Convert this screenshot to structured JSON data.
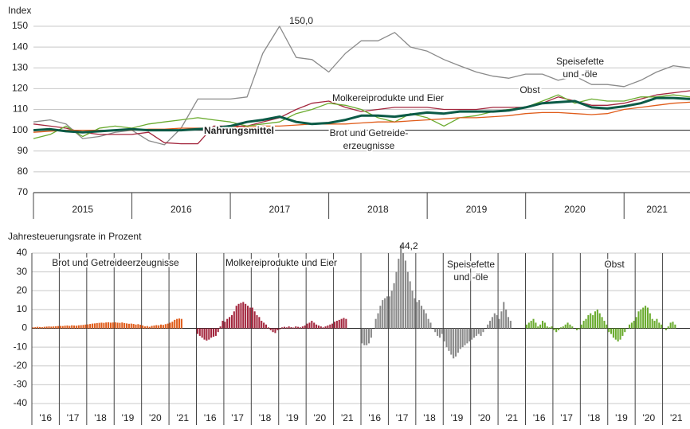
{
  "chart_data": [
    {
      "type": "line",
      "axis_title": "Index",
      "x": [
        2015,
        2015.17,
        2015.33,
        2015.5,
        2015.67,
        2015.83,
        2016,
        2016.17,
        2016.33,
        2016.5,
        2016.67,
        2016.83,
        2017,
        2017.17,
        2017.33,
        2017.5,
        2017.67,
        2017.83,
        2018,
        2018.17,
        2018.33,
        2018.5,
        2018.67,
        2018.83,
        2019,
        2019.17,
        2019.33,
        2019.5,
        2019.67,
        2019.83,
        2020,
        2020.17,
        2020.33,
        2020.5,
        2020.67,
        2020.83,
        2021,
        2021.17,
        2021.33,
        2021.5,
        2021.67
      ],
      "xlim": [
        2015,
        2021.67
      ],
      "xticks": [
        2015,
        2016,
        2017,
        2018,
        2019,
        2020,
        2021
      ],
      "year_labels": [
        "2015",
        "2016",
        "2017",
        "2018",
        "2019",
        "2020",
        "2021"
      ],
      "ylim": [
        70,
        150
      ],
      "yticks": [
        70,
        80,
        90,
        100,
        110,
        120,
        130,
        140,
        150
      ],
      "grid": true,
      "reference_line": 100,
      "annotations": [
        {
          "text": "150,0"
        }
      ],
      "series": [
        {
          "name": "Nahrungsmittel",
          "color": "#0b5a46",
          "width": 3,
          "values": [
            100,
            100.5,
            99.5,
            99,
            99.5,
            100,
            100.5,
            100,
            100,
            100,
            100.5,
            101,
            102,
            104,
            105,
            106.5,
            104,
            103,
            103.5,
            105,
            107,
            107,
            106.5,
            107.5,
            108.5,
            108,
            109,
            109,
            109,
            109.5,
            111,
            113,
            113.5,
            114,
            111,
            110.5,
            111.5,
            113,
            115.5,
            115.5,
            115
          ]
        },
        {
          "name": [
            "Speisefette",
            "und -öle"
          ],
          "color": "#8a8a8a",
          "width": 1.3,
          "values": [
            104,
            105,
            103,
            96,
            97,
            99,
            100,
            95,
            93,
            101,
            115,
            115,
            115,
            116,
            137,
            150,
            135,
            134,
            128,
            137,
            143,
            143,
            147,
            140,
            138,
            134,
            131,
            128,
            126,
            125,
            127,
            127,
            124,
            126,
            122,
            122,
            121,
            124,
            128,
            131,
            130
          ]
        },
        {
          "name": "Molkereiprodukte und Eier",
          "color": "#a3263d",
          "width": 1.3,
          "values": [
            103,
            102,
            101,
            99,
            98,
            98,
            98,
            99,
            94,
            93.5,
            93.5,
            102,
            102,
            102,
            104,
            106,
            110,
            113,
            114,
            111,
            109,
            110,
            111,
            111,
            111,
            110,
            110,
            110,
            111,
            111,
            111,
            113,
            116,
            114,
            112,
            112,
            113,
            115,
            117,
            118,
            119
          ]
        },
        {
          "name": "Obst",
          "color": "#6aab2e",
          "width": 1.3,
          "values": [
            96,
            98,
            102,
            97,
            101,
            102,
            101,
            103,
            104,
            105,
            106,
            105,
            104,
            102,
            103,
            104,
            108,
            110,
            113,
            112,
            110,
            106,
            104,
            108,
            106,
            102,
            106,
            107,
            109,
            110,
            111,
            114,
            117,
            113,
            115,
            114,
            114,
            116,
            116,
            117,
            116
          ]
        },
        {
          "name": [
            "Brot und Getreide-",
            "erzeugnisse"
          ],
          "color": "#e05c1a",
          "width": 1.3,
          "values": [
            99,
            99.5,
            100,
            100,
            100,
            100,
            100,
            100.5,
            100.5,
            101,
            101,
            101,
            101.5,
            101.5,
            102,
            102,
            102.5,
            103,
            103,
            103,
            103.5,
            104,
            104,
            104.5,
            105,
            105.5,
            106,
            106,
            106.5,
            107,
            108,
            108.5,
            108.5,
            108,
            107.5,
            108,
            110,
            111,
            112,
            113,
            113.5
          ]
        }
      ]
    },
    {
      "type": "bar",
      "axis_title": "Jahresteuerungsrate in Prozent",
      "year_labels": [
        "'16",
        "'17",
        "'18",
        "'19",
        "'20",
        "'21"
      ],
      "ylim": [
        -40,
        40
      ],
      "yticks": [
        -40,
        -30,
        -20,
        -10,
        0,
        10,
        20,
        30,
        40
      ],
      "grid": true,
      "reference_line": 0,
      "annotations": [
        {
          "text": "44,2"
        }
      ],
      "series": [
        {
          "name": "Brot und Getreideerzeugnisse",
          "color": "#e05c1a",
          "values": [
            0.5,
            0.6,
            0.8,
            0.7,
            0.6,
            0.8,
            0.9,
            1.0,
            0.9,
            1.0,
            1.1,
            1.2,
            1.3,
            1.2,
            1.4,
            1.5,
            1.3,
            1.6,
            1.5,
            1.4,
            1.6,
            1.7,
            1.8,
            2.0,
            2.1,
            2.3,
            2.5,
            2.6,
            2.8,
            2.9,
            3.0,
            2.9,
            3.1,
            3.2,
            3.0,
            3.1,
            3.2,
            3.0,
            2.9,
            3.1,
            2.8,
            2.6,
            2.4,
            2.5,
            2.3,
            2.0,
            2.2,
            1.9,
            1.5,
            1.0,
            1.2,
            0.8,
            1.3,
            1.5,
            1.7,
            1.6,
            2.0,
            1.8,
            2.2,
            2.5,
            3.0,
            3.5,
            4.5,
            5.0,
            5.2,
            5.0
          ]
        },
        {
          "name": "Molkereiprodukte und Eier",
          "color": "#a3263d",
          "values": [
            -3,
            -4,
            -5,
            -6,
            -6.5,
            -6,
            -5,
            -4.5,
            -4,
            -2,
            1,
            4,
            3.5,
            5,
            6,
            7,
            9,
            12,
            13,
            13.5,
            14,
            13,
            12,
            11,
            11,
            9,
            7,
            6,
            4,
            3,
            2,
            0.5,
            -1,
            -2,
            -2.5,
            -1,
            -0.5,
            0.5,
            0.8,
            0.5,
            1,
            0.6,
            0.4,
            1,
            0.8,
            0.5,
            1,
            1.5,
            2.5,
            3,
            4,
            3,
            2,
            1.5,
            1,
            0.5,
            1,
            1.5,
            2,
            2.5,
            3.5,
            4,
            4.5,
            5,
            5.5,
            5
          ]
        },
        {
          "name": [
            "Speisefette",
            "und -öle"
          ],
          "color": "#8a8a8a",
          "values": [
            -8,
            -9,
            -9,
            -8,
            -5,
            0,
            5,
            8,
            12,
            15,
            16,
            17,
            17,
            20,
            24,
            30,
            37,
            44.2,
            40,
            36,
            30,
            25,
            20,
            16,
            14,
            15,
            12,
            10,
            8,
            5,
            3,
            0,
            -2,
            -4,
            -5,
            -3,
            -7,
            -10,
            -12,
            -14,
            -16,
            -15,
            -13,
            -11,
            -10,
            -9,
            -8,
            -7,
            -6,
            -5,
            -4,
            -3,
            -4,
            -2,
            0,
            2,
            4,
            6,
            8,
            7,
            5,
            9,
            14,
            10,
            6,
            4
          ]
        },
        {
          "name": "Obst",
          "color": "#6aab2e",
          "values": [
            2,
            3,
            4,
            5,
            3,
            1,
            2,
            4,
            3,
            1,
            0.5,
            1,
            -1,
            -2,
            -1,
            0.5,
            1,
            2,
            3,
            2,
            1,
            0,
            -1,
            -0.5,
            2,
            4,
            5,
            7,
            8,
            7,
            9,
            10,
            8,
            6,
            4,
            2,
            -2,
            -3,
            -5,
            -6,
            -7,
            -6,
            -4,
            -2,
            0,
            2,
            3,
            4,
            6,
            9,
            10,
            11,
            12,
            11,
            8,
            5,
            4,
            5,
            3,
            2,
            0,
            -1,
            1,
            3,
            3.5,
            2
          ]
        }
      ]
    }
  ]
}
